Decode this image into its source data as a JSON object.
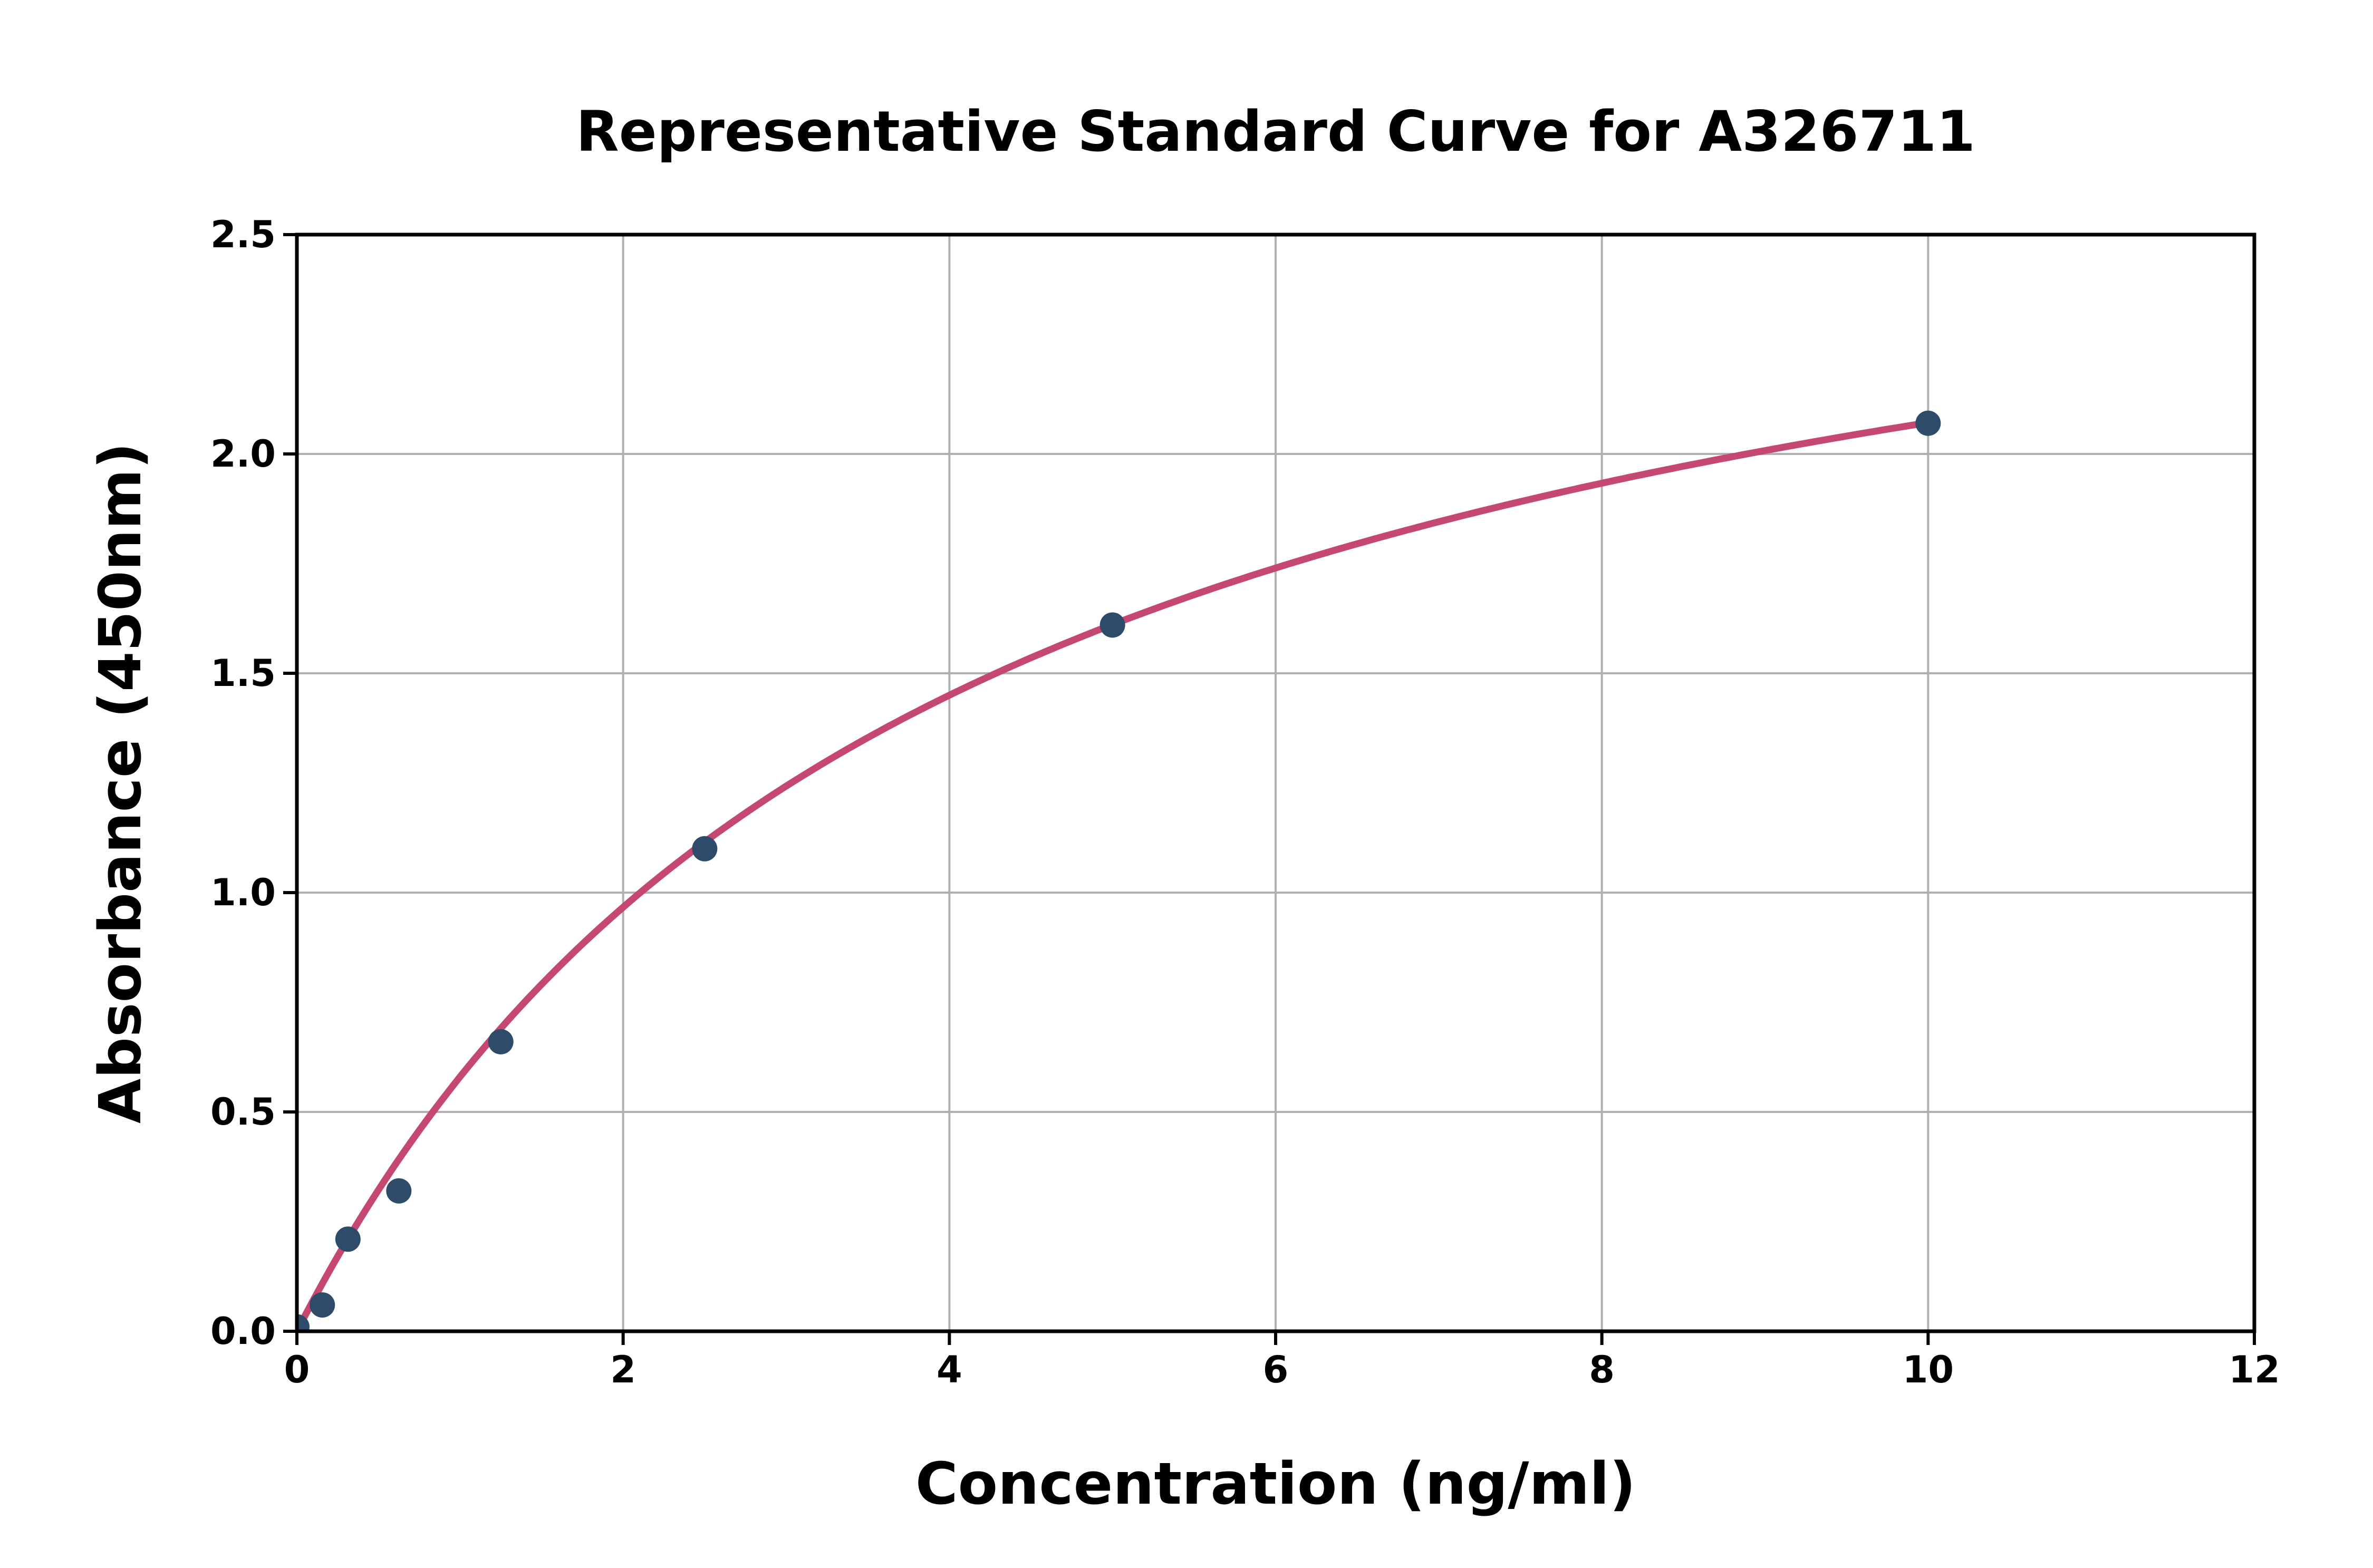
{
  "chart_data": {
    "type": "scatter",
    "title": "Representative Standard Curve for A326711",
    "xlabel": "Concentration (ng/ml)",
    "ylabel": "Absorbance (450nm)",
    "xlim": [
      0,
      12
    ],
    "ylim": [
      0,
      2.5
    ],
    "xticks": [
      0,
      2,
      4,
      6,
      8,
      10,
      12
    ],
    "yticks": [
      "0.0",
      "0.5",
      "1.0",
      "1.5",
      "2.0",
      "2.5"
    ],
    "grid": true,
    "legend": null,
    "points": [
      {
        "x": 0,
        "y": 0.01
      },
      {
        "x": 0.156,
        "y": 0.06
      },
      {
        "x": 0.313,
        "y": 0.21
      },
      {
        "x": 0.625,
        "y": 0.32
      },
      {
        "x": 1.25,
        "y": 0.66
      },
      {
        "x": 2.5,
        "y": 1.1
      },
      {
        "x": 5,
        "y": 1.61
      },
      {
        "x": 10,
        "y": 2.07
      }
    ],
    "fit_curve": {
      "type": "michaelis_menten",
      "formula": "y = a*x / (b + x)",
      "a": 2.9,
      "b": 4.0,
      "x_range": [
        0,
        10
      ]
    },
    "colors": {
      "marker": "#2E4C6A",
      "curve": "#C4486F",
      "grid": "#B0B0B0",
      "axis": "#000000",
      "background": "#FFFFFF"
    }
  }
}
